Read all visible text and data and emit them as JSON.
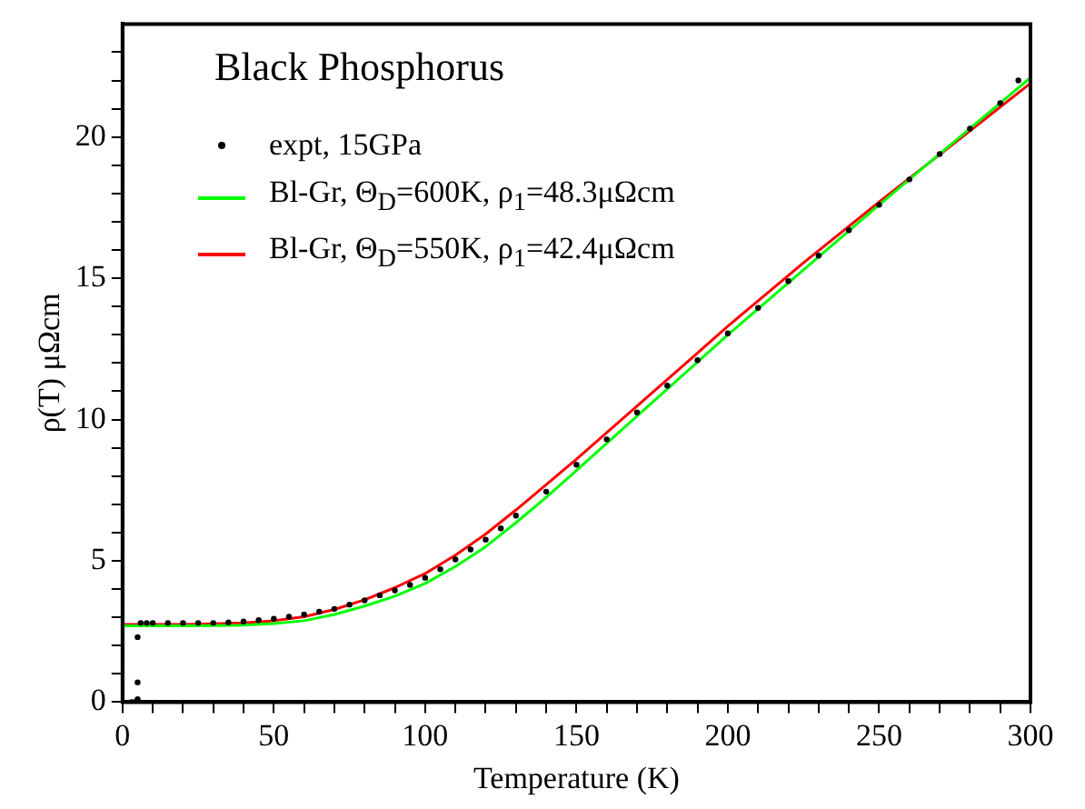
{
  "chart_data": {
    "type": "scatter",
    "title": "Black Phosphorus",
    "xlabel": "Temperature (K)",
    "ylabel": "ρ(T) μΩcm",
    "xlim": [
      0,
      300
    ],
    "ylim": [
      0,
      24
    ],
    "xticks": [
      0,
      {
        "value": 10,
        "label": null
      },
      {
        "value": 20,
        "label": null
      },
      {
        "value": 30,
        "label": null
      },
      {
        "value": 40,
        "label": null
      },
      50,
      {
        "value": 60,
        "label": null
      },
      {
        "value": 70,
        "label": null
      },
      {
        "value": 80,
        "label": null
      },
      {
        "value": 90,
        "label": null
      },
      100,
      {
        "value": 110,
        "label": null
      },
      {
        "value": 120,
        "label": null
      },
      {
        "value": 130,
        "label": null
      },
      {
        "value": 140,
        "label": null
      },
      150,
      {
        "value": 160,
        "label": null
      },
      {
        "value": 170,
        "label": null
      },
      {
        "value": 180,
        "label": null
      },
      {
        "value": 190,
        "label": null
      },
      200,
      {
        "value": 210,
        "label": null
      },
      {
        "value": 220,
        "label": null
      },
      {
        "value": 230,
        "label": null
      },
      {
        "value": 240,
        "label": null
      },
      250,
      {
        "value": 260,
        "label": null
      },
      {
        "value": 270,
        "label": null
      },
      {
        "value": 280,
        "label": null
      },
      {
        "value": 290,
        "label": null
      },
      300
    ],
    "yticks": [
      0,
      {
        "value": 1,
        "label": null
      },
      {
        "value": 2,
        "label": null
      },
      {
        "value": 3,
        "label": null
      },
      {
        "value": 4,
        "label": null
      },
      5,
      {
        "value": 6,
        "label": null
      },
      {
        "value": 7,
        "label": null
      },
      {
        "value": 8,
        "label": null
      },
      {
        "value": 9,
        "label": null
      },
      10,
      {
        "value": 11,
        "label": null
      },
      {
        "value": 12,
        "label": null
      },
      {
        "value": 13,
        "label": null
      },
      {
        "value": 14,
        "label": null
      },
      15,
      {
        "value": 16,
        "label": null
      },
      {
        "value": 17,
        "label": null
      },
      {
        "value": 18,
        "label": null
      },
      {
        "value": 19,
        "label": null
      },
      20,
      {
        "value": 21,
        "label": null
      },
      {
        "value": 22,
        "label": null
      },
      {
        "value": 23,
        "label": null
      }
    ],
    "grid": false,
    "legend": "top left",
    "series": [
      {
        "name": "expt, 15GPa",
        "marker": "circle",
        "color": "#000000",
        "x": [
          3,
          4,
          5,
          5,
          5,
          6,
          8,
          10,
          15,
          20,
          25,
          30,
          35,
          40,
          45,
          50,
          55,
          60,
          65,
          70,
          75,
          80,
          85,
          90,
          95,
          100,
          105,
          110,
          115,
          120,
          125,
          130,
          140,
          150,
          160,
          170,
          180,
          190,
          200,
          210,
          220,
          230,
          240,
          250,
          260,
          270,
          280,
          290,
          296
        ],
        "values": [
          0,
          0,
          0.1,
          0.7,
          2.3,
          2.8,
          2.8,
          2.8,
          2.8,
          2.8,
          2.8,
          2.8,
          2.82,
          2.85,
          2.9,
          2.95,
          3.02,
          3.1,
          3.2,
          3.3,
          3.45,
          3.6,
          3.78,
          3.95,
          4.15,
          4.4,
          4.7,
          5.05,
          5.4,
          5.75,
          6.15,
          6.6,
          7.45,
          8.4,
          9.3,
          10.25,
          11.2,
          12.1,
          13.05,
          13.95,
          14.9,
          15.8,
          16.7,
          17.6,
          18.5,
          19.4,
          20.3,
          21.2,
          22.0
        ]
      },
      {
        "name": "Bl-Gr, Θ$_{D}$=600K, ρ$_{1}$=48.3μΩcm",
        "type": "line",
        "color": "#00ff00",
        "x": [
          0,
          20,
          40,
          50,
          60,
          70,
          80,
          90,
          100,
          110,
          120,
          130,
          140,
          150,
          175,
          200,
          225,
          250,
          275,
          300
        ],
        "values": [
          2.7,
          2.7,
          2.72,
          2.78,
          2.88,
          3.1,
          3.4,
          3.75,
          4.2,
          4.8,
          5.5,
          6.35,
          7.25,
          8.2,
          10.6,
          13.0,
          15.3,
          17.6,
          19.85,
          22.1
        ]
      },
      {
        "name": "Bl-Gr, Θ$_{D}$=550K, ρ$_{1}$=42.4μΩcm",
        "type": "line",
        "color": "#ff0000",
        "x": [
          0,
          20,
          40,
          50,
          60,
          70,
          80,
          90,
          100,
          110,
          120,
          130,
          140,
          150,
          175,
          200,
          225,
          250,
          275,
          300
        ],
        "values": [
          2.75,
          2.75,
          2.8,
          2.88,
          3.02,
          3.28,
          3.62,
          4.05,
          4.55,
          5.2,
          5.95,
          6.8,
          7.7,
          8.6,
          10.95,
          13.3,
          15.55,
          17.7,
          19.8,
          21.9
        ]
      }
    ]
  }
}
